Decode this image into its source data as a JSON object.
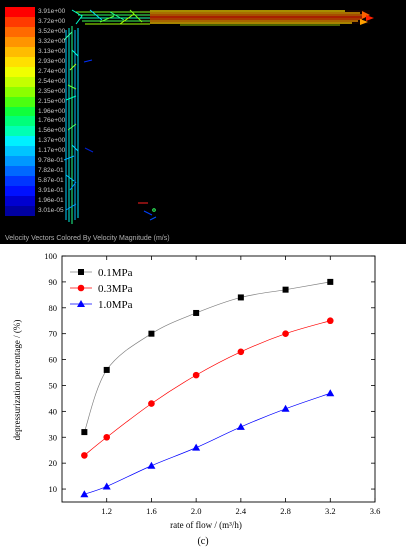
{
  "cfd": {
    "caption": "Velocity Vectors Colored By Velocity Magnitude (m/s)",
    "colorbar": {
      "labels": [
        "3.91e+00",
        "3.72e+00",
        "3.52e+00",
        "3.32e+00",
        "3.13e+00",
        "2.93e+00",
        "2.74e+00",
        "2.54e+00",
        "2.35e+00",
        "2.15e+00",
        "1.96e+00",
        "1.76e+00",
        "1.56e+00",
        "1.37e+00",
        "1.17e+00",
        "9.78e-01",
        "7.82e-01",
        "5.87e-01",
        "3.91e-01",
        "1.96e-01",
        "3.01e-05"
      ],
      "colors": [
        "#ff0000",
        "#ff3a00",
        "#ff6a00",
        "#ff9400",
        "#ffbc00",
        "#ffe000",
        "#f0ff00",
        "#c4ff00",
        "#8cff00",
        "#4cff10",
        "#10ff3c",
        "#00ff7a",
        "#00ffb4",
        "#00f0ff",
        "#00c4ff",
        "#0098ff",
        "#0068ff",
        "#0036ff",
        "#0010ff",
        "#0000d0",
        "#0000a0"
      ]
    }
  },
  "chart_data": {
    "type": "scatter",
    "title": "",
    "xlabel": "rate of flow / (m³/h)",
    "ylabel": "depressurization percentage / (%)",
    "xlim": [
      0.8,
      3.6
    ],
    "ylim": [
      5,
      100
    ],
    "xticks": [
      "1.2",
      "1.6",
      "2.0",
      "2.4",
      "2.8",
      "3.2",
      "3.6"
    ],
    "yticks": [
      "10",
      "20",
      "30",
      "40",
      "50",
      "60",
      "70",
      "80",
      "90",
      "100"
    ],
    "legend_position": "top-left",
    "series": [
      {
        "name": "0.1MPa",
        "color": "#000000",
        "marker": "square",
        "x": [
          1.0,
          1.2,
          1.6,
          2.0,
          2.4,
          2.8,
          3.2
        ],
        "y": [
          32,
          56,
          70,
          78,
          84,
          87,
          90
        ]
      },
      {
        "name": "0.3MPa",
        "color": "#ff0000",
        "marker": "circle",
        "x": [
          1.0,
          1.2,
          1.6,
          2.0,
          2.4,
          2.8,
          3.2
        ],
        "y": [
          23,
          30,
          43,
          54,
          63,
          70,
          75
        ]
      },
      {
        "name": "1.0MPa",
        "color": "#0000ff",
        "marker": "triangle",
        "x": [
          1.0,
          1.2,
          1.6,
          2.0,
          2.4,
          2.8,
          3.2
        ],
        "y": [
          8,
          11,
          19,
          26,
          34,
          41,
          47
        ]
      }
    ]
  },
  "figure_label": "(c)"
}
